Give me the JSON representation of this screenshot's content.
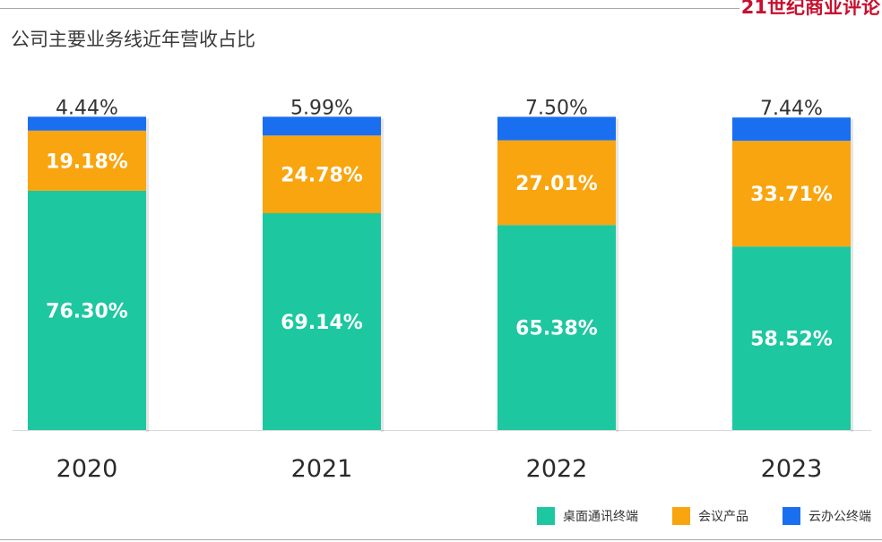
{
  "header": {
    "title": "公司主要业务线近年营收占比",
    "brand": "21世纪商业评论"
  },
  "colors": {
    "desktop": "#1dc7a0",
    "meeting": "#f9a50f",
    "cloud": "#1a6ff0",
    "brand": "#c8102e"
  },
  "chart_data": {
    "type": "bar",
    "stacked": true,
    "normalized": true,
    "categories": [
      "2020",
      "2021",
      "2022",
      "2023"
    ],
    "series": [
      {
        "name": "桌面通讯终端",
        "values": [
          76.3,
          69.14,
          65.38,
          58.52
        ],
        "labels": [
          "76.30%",
          "69.14%",
          "65.38%",
          "58.52%"
        ],
        "color": "#1dc7a0"
      },
      {
        "name": "会议产品",
        "values": [
          19.18,
          24.78,
          27.01,
          33.71
        ],
        "labels": [
          "19.18%",
          "24.78%",
          "27.01%",
          "33.71%"
        ],
        "color": "#f9a50f"
      },
      {
        "name": "云办公终端",
        "values": [
          4.44,
          5.99,
          7.5,
          7.44
        ],
        "labels": [
          "4.44%",
          "5.99%",
          "7.50%",
          "7.44%"
        ],
        "color": "#1a6ff0"
      }
    ],
    "title": "公司主要业务线近年营收占比",
    "xlabel": "",
    "ylabel": "",
    "ylim": [
      0,
      100
    ],
    "grid": false,
    "legend": "bottom-right"
  }
}
